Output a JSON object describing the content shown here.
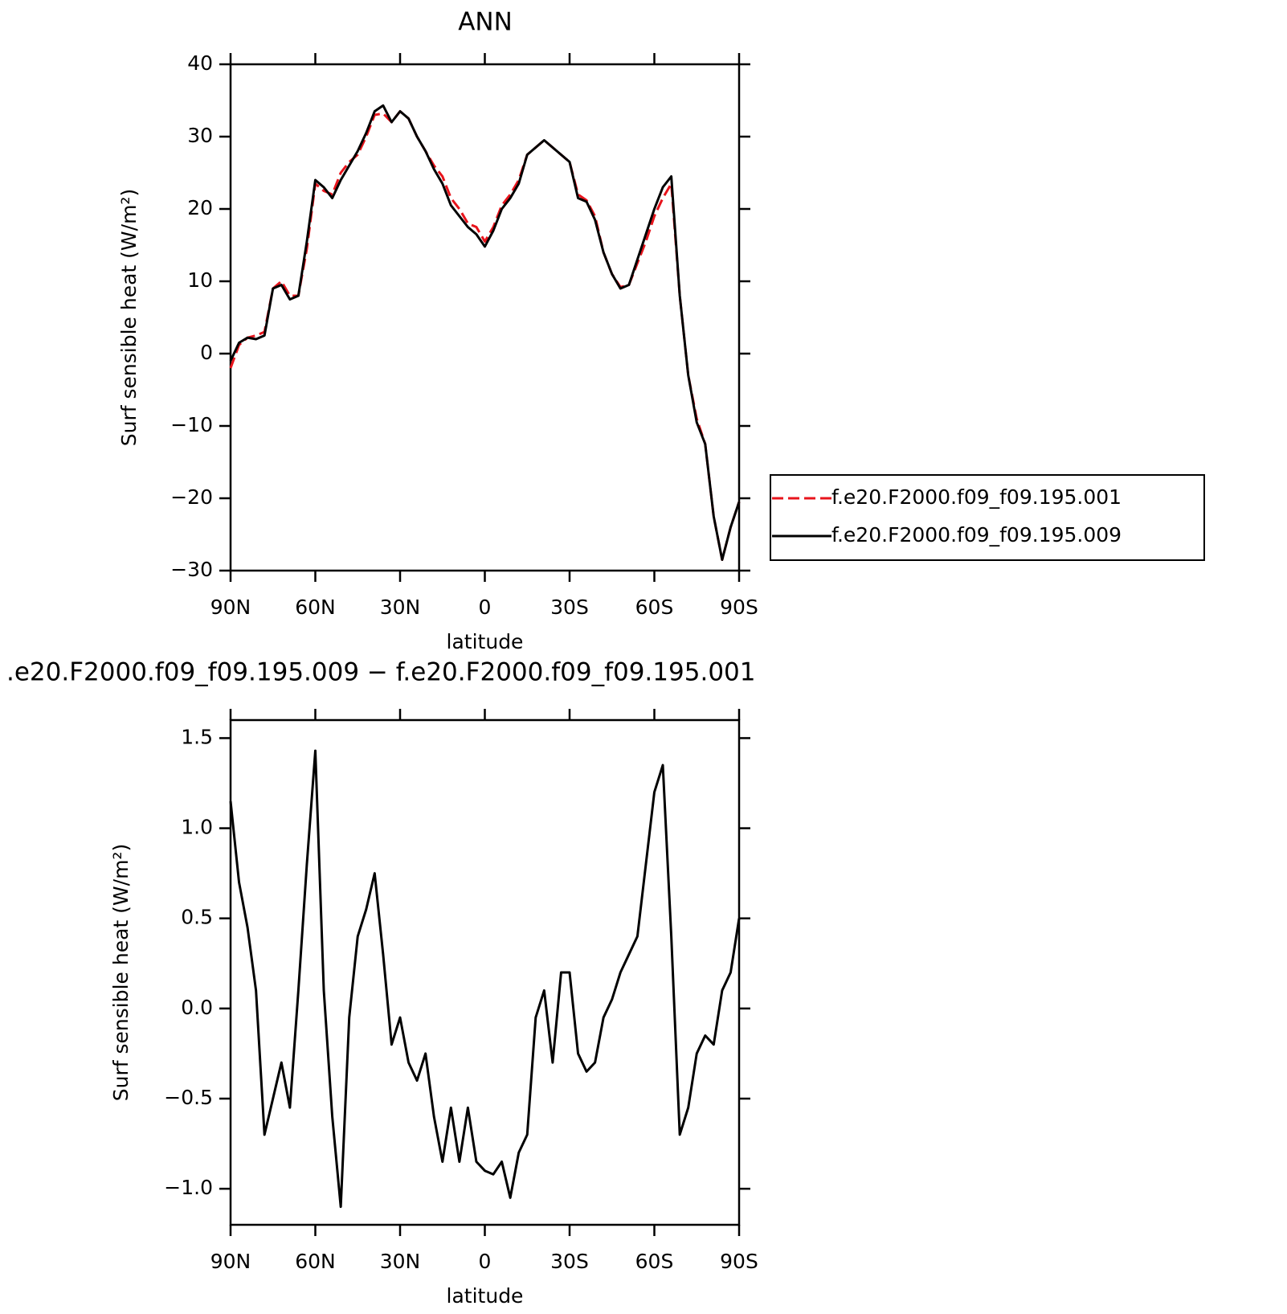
{
  "chart_data": [
    {
      "type": "line",
      "title": "ANN",
      "x_label": "latitude",
      "y_label": "Surf sensible heat (W/m²)",
      "x": [
        90,
        87,
        84,
        81,
        78,
        75,
        72,
        69,
        66,
        63,
        60,
        57,
        54,
        51,
        48,
        45,
        42,
        39,
        36,
        33,
        30,
        27,
        24,
        21,
        18,
        15,
        12,
        9,
        6,
        3,
        0,
        -3,
        -6,
        -9,
        -12,
        -15,
        -18,
        -21,
        -24,
        -27,
        -30,
        -33,
        -36,
        -39,
        -42,
        -45,
        -48,
        -51,
        -54,
        -57,
        -60,
        -63,
        -66,
        -69,
        -72,
        -75,
        -78,
        -81,
        -84,
        -87,
        -90
      ],
      "xlim": [
        90,
        -90
      ],
      "xticks": [
        {
          "value": 90,
          "label": "90N"
        },
        {
          "value": 60,
          "label": "60N"
        },
        {
          "value": 30,
          "label": "30N"
        },
        0,
        {
          "value": -30,
          "label": "30S"
        },
        {
          "value": -60,
          "label": "60S"
        },
        {
          "value": -90,
          "label": "90S"
        }
      ],
      "ylim": [
        -30,
        40
      ],
      "yticks": [
        {
          "value": -30,
          "label": "−30"
        },
        {
          "value": -20,
          "label": "−20"
        },
        {
          "value": -10,
          "label": "−10"
        },
        0,
        10,
        20,
        30,
        40
      ],
      "legend": "right",
      "series": [
        {
          "name": "f.e20.F2000.f09_f09.195.001",
          "color": "#e8141c",
          "dash": true,
          "values": [
            -2,
            1.2,
            2.2,
            2.5,
            3,
            9,
            10,
            8,
            8,
            14.5,
            23.5,
            22.5,
            22,
            25,
            26.5,
            27.5,
            30,
            33,
            33.2,
            32,
            33.5,
            32.5,
            30,
            28,
            26,
            24.5,
            21.5,
            20,
            18,
            17.5,
            15.5,
            17.5,
            20.5,
            22,
            24,
            27.5,
            28.5,
            29.5,
            28.5,
            27.5,
            26.5,
            22,
            21.2,
            19,
            14,
            11,
            9.2,
            9.5,
            12.5,
            15.5,
            19,
            21.5,
            23.5,
            8,
            -3,
            -9,
            -12.5,
            -22.5,
            -28.5,
            -24,
            -20.5
          ]
        },
        {
          "name": "f.e20.F2000.f09_f09.195.009",
          "color": "#000000",
          "dash": false,
          "values": [
            -1,
            1.5,
            2.2,
            2.0,
            2.5,
            9,
            9.5,
            7.5,
            8,
            15.5,
            24,
            23,
            21.5,
            24,
            26,
            28,
            30.5,
            33.5,
            34.3,
            32,
            33.5,
            32.5,
            30,
            28,
            25.5,
            23.5,
            20.5,
            19,
            17.5,
            16.5,
            14.8,
            17,
            20,
            21.5,
            23.5,
            27.5,
            28.5,
            29.5,
            28.5,
            27.5,
            26.5,
            21.5,
            21,
            18.5,
            14,
            11,
            9,
            9.5,
            13,
            16.5,
            20,
            23,
            24.5,
            8,
            -3,
            -9.5,
            -12.5,
            -22.5,
            -28.5,
            -24,
            -20.5
          ]
        }
      ]
    },
    {
      "type": "line",
      "title": ".e20.F2000.f09_f09.195.009 − f.e20.F2000.f09_f09.195.001",
      "x_label": "latitude",
      "y_label": "Surf sensible heat (W/m²)",
      "x": [
        90,
        87,
        84,
        81,
        78,
        75,
        72,
        69,
        66,
        63,
        60,
        57,
        54,
        51,
        48,
        45,
        42,
        39,
        36,
        33,
        30,
        27,
        24,
        21,
        18,
        15,
        12,
        9,
        6,
        3,
        0,
        -3,
        -6,
        -9,
        -12,
        -15,
        -18,
        -21,
        -24,
        -27,
        -30,
        -33,
        -36,
        -39,
        -42,
        -45,
        -48,
        -51,
        -54,
        -57,
        -60,
        -63,
        -66,
        -69,
        -72,
        -75,
        -78,
        -81,
        -84,
        -87,
        -90
      ],
      "xlim": [
        90,
        -90
      ],
      "xticks": [
        {
          "value": 90,
          "label": "90N"
        },
        {
          "value": 60,
          "label": "60N"
        },
        {
          "value": 30,
          "label": "30N"
        },
        0,
        {
          "value": -30,
          "label": "30S"
        },
        {
          "value": -60,
          "label": "60S"
        },
        {
          "value": -90,
          "label": "90S"
        }
      ],
      "ylim": [
        -1.2,
        1.6
      ],
      "yticks": [
        {
          "value": -1,
          "label": "−1.0"
        },
        {
          "value": -0.5,
          "label": "−0.5"
        },
        {
          "value": 0,
          "label": "0.0"
        },
        0.5,
        {
          "value": 1,
          "label": "1.0"
        },
        1.5
      ],
      "color": "#000000",
      "values": [
        1.15,
        0.7,
        0.45,
        0.1,
        -0.7,
        -0.5,
        -0.3,
        -0.55,
        0.1,
        0.8,
        1.43,
        0.1,
        -0.6,
        -1.1,
        -0.05,
        0.4,
        0.55,
        0.75,
        0.3,
        -0.2,
        -0.05,
        -0.3,
        -0.4,
        -0.25,
        -0.6,
        -0.85,
        -0.55,
        -0.85,
        -0.55,
        -0.85,
        -0.9,
        -0.92,
        -0.85,
        -1.05,
        -0.8,
        -0.7,
        -0.05,
        0.1,
        -0.3,
        0.2,
        0.2,
        -0.25,
        -0.35,
        -0.3,
        -0.05,
        0.05,
        0.2,
        0.3,
        0.4,
        0.8,
        1.2,
        1.35,
        0.4,
        -0.7,
        -0.55,
        -0.25,
        -0.15,
        -0.2,
        0.1,
        0.2,
        0.5
      ]
    }
  ]
}
